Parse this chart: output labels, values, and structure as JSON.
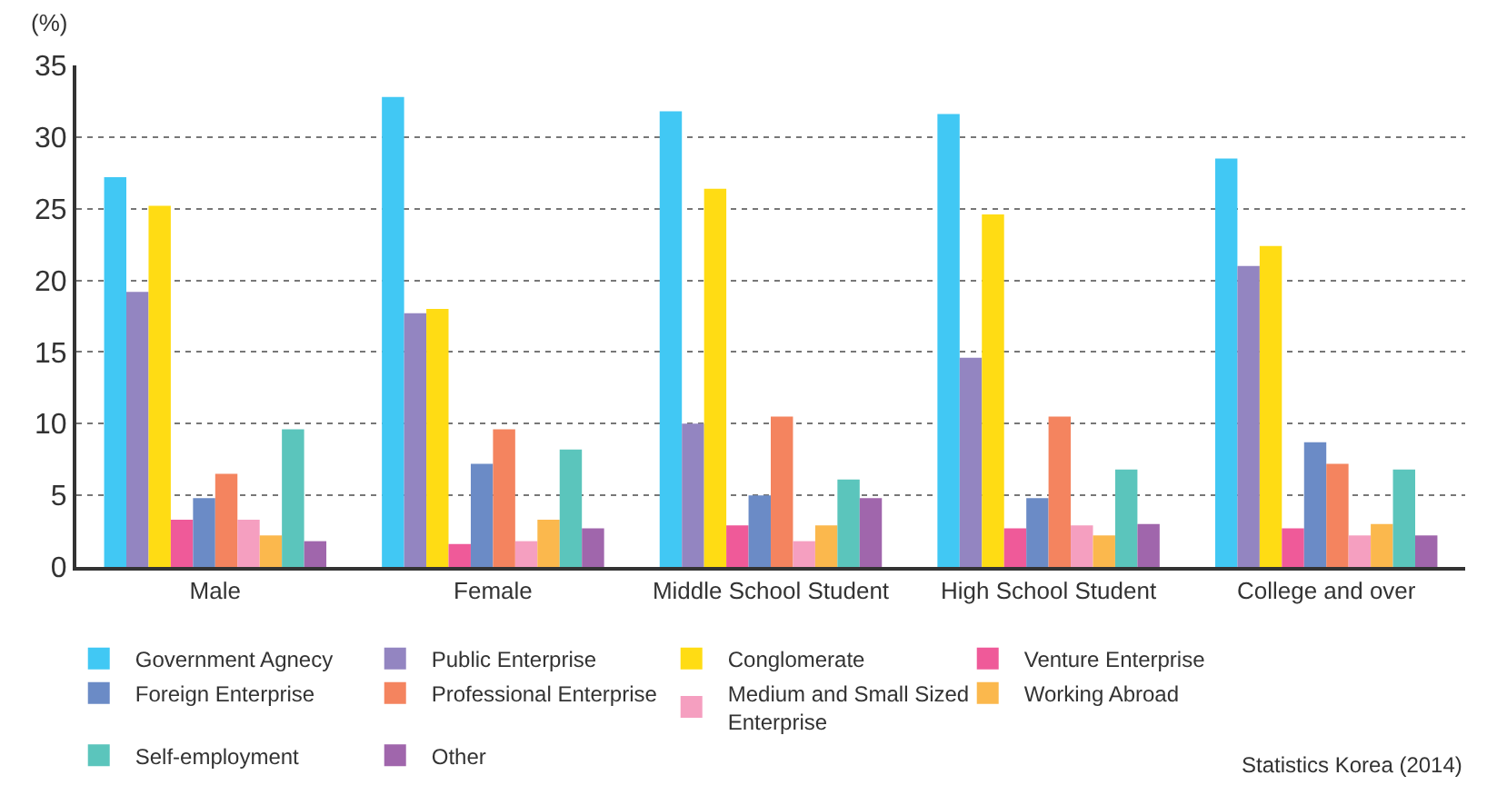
{
  "chart_data": {
    "type": "bar",
    "ylabel": "(%)",
    "categories": [
      "Male",
      "Female",
      "Middle School Student",
      "High School Student",
      "College and over"
    ],
    "series": [
      {
        "name": "Government Agnecy",
        "color": "#41c8f4",
        "values": [
          27.2,
          32.8,
          31.8,
          31.6,
          28.5
        ]
      },
      {
        "name": "Public Enterprise",
        "color": "#9385c1",
        "values": [
          19.2,
          17.7,
          10.0,
          14.6,
          21.0
        ]
      },
      {
        "name": "Conglomerate",
        "color": "#ffdc14",
        "values": [
          25.2,
          18.0,
          26.4,
          24.6,
          22.4
        ]
      },
      {
        "name": "Venture Enterprise",
        "color": "#ef5a99",
        "values": [
          3.3,
          1.6,
          2.9,
          2.7,
          2.7
        ]
      },
      {
        "name": "Foreign Enterprise",
        "color": "#6b8bc6",
        "values": [
          4.8,
          7.2,
          5.0,
          4.8,
          8.7
        ]
      },
      {
        "name": "Professional Enterprise",
        "color": "#f4845f",
        "values": [
          6.5,
          9.6,
          10.5,
          10.5,
          7.2
        ]
      },
      {
        "name": "Medium and Small Sized Enterprise",
        "color": "#f59fc0",
        "values": [
          3.3,
          1.8,
          1.8,
          2.9,
          2.2
        ]
      },
      {
        "name": "Working Abroad",
        "color": "#fbb84d",
        "values": [
          2.2,
          3.3,
          2.9,
          2.2,
          3.0
        ]
      },
      {
        "name": "Self-employment",
        "color": "#5bc5bc",
        "values": [
          9.6,
          8.2,
          6.1,
          6.8,
          6.8
        ]
      },
      {
        "name": "Other",
        "color": "#a066ac",
        "values": [
          1.8,
          2.7,
          4.8,
          3.0,
          2.2
        ]
      }
    ],
    "ylim": [
      0,
      35
    ],
    "yticks": [
      0,
      5,
      10,
      15,
      20,
      25,
      30,
      35
    ],
    "grid": "y",
    "legend": "bottom",
    "annotations": [
      "Statistics Korea (2014)"
    ]
  }
}
